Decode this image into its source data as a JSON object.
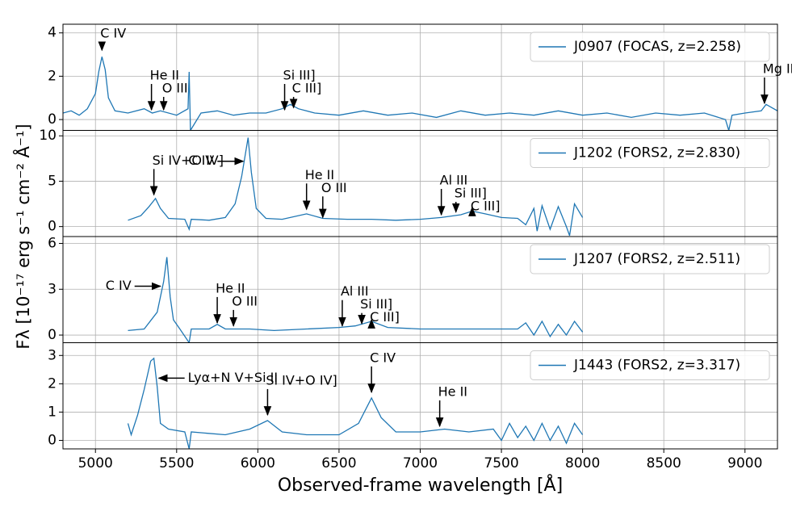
{
  "chart_data": [
    {
      "type": "line",
      "ylabel": "Fλ [10⁻¹⁷ erg s⁻¹ cm⁻² Å⁻¹]",
      "x": [
        4800,
        4850,
        4900,
        4950,
        5000,
        5020,
        5040,
        5060,
        5080,
        5120,
        5200,
        5300,
        5350,
        5400,
        5500,
        5570,
        5577,
        5585,
        5650,
        5750,
        5850,
        5950,
        6050,
        6150,
        6200,
        6250,
        6350,
        6500,
        6650,
        6800,
        6950,
        7100,
        7250,
        7400,
        7550,
        7700,
        7850,
        8000,
        8150,
        8300,
        8450,
        8600,
        8750,
        8880,
        8900,
        8920,
        9000,
        9100,
        9130,
        9200
      ],
      "series": [
        {
          "name": "J0907 (FOCAS, z=2.258)",
          "color": "#1f77b4",
          "values": [
            0.3,
            0.4,
            0.2,
            0.5,
            1.2,
            2.2,
            2.9,
            2.3,
            1.0,
            0.4,
            0.3,
            0.5,
            0.3,
            0.4,
            0.2,
            0.5,
            2.2,
            -0.5,
            0.3,
            0.4,
            0.2,
            0.3,
            0.3,
            0.5,
            0.7,
            0.5,
            0.3,
            0.2,
            0.4,
            0.2,
            0.3,
            0.1,
            0.4,
            0.2,
            0.3,
            0.2,
            0.4,
            0.2,
            0.3,
            0.1,
            0.3,
            0.2,
            0.3,
            0.0,
            -0.5,
            0.2,
            0.3,
            0.4,
            0.7,
            0.4
          ]
        }
      ],
      "ylim": [
        -0.5,
        4.4
      ],
      "yticks": [
        0,
        2,
        4
      ],
      "annotations": [
        {
          "text": "C IV",
          "x": 5040,
          "y": 3.2,
          "arrow": "down"
        },
        {
          "text": "He II",
          "x": 5345,
          "y": 0.45,
          "arrow": "down"
        },
        {
          "text": "O III",
          "x": 5420,
          "y": 0.45,
          "arrow": "down"
        },
        {
          "text": "Si III]",
          "x": 6165,
          "y": 0.45,
          "arrow": "down"
        },
        {
          "text": "C III]",
          "x": 6220,
          "y": 0.55,
          "arrow": "down"
        },
        {
          "text": "Mg II",
          "x": 9120,
          "y": 0.75,
          "arrow": "down"
        }
      ]
    },
    {
      "type": "line",
      "x": [
        5200,
        5280,
        5330,
        5370,
        5400,
        5450,
        5550,
        5577,
        5590,
        5700,
        5800,
        5860,
        5900,
        5940,
        5960,
        5990,
        6050,
        6150,
        6300,
        6400,
        6550,
        6700,
        6850,
        7000,
        7130,
        7250,
        7320,
        7400,
        7500,
        7600,
        7650,
        7700,
        7720,
        7750,
        7800,
        7850,
        7900,
        7920,
        7950,
        8000
      ],
      "series": [
        {
          "name": "J1202 (FORS2, z=2.830)",
          "color": "#1f77b4",
          "values": [
            0.7,
            1.2,
            2.2,
            3.1,
            2.0,
            0.9,
            0.8,
            -0.3,
            0.8,
            0.7,
            1.0,
            2.5,
            5.5,
            9.8,
            6.0,
            2.0,
            0.9,
            0.8,
            1.4,
            0.9,
            0.8,
            0.8,
            0.7,
            0.8,
            1.0,
            1.3,
            1.7,
            1.4,
            1.0,
            0.9,
            0.2,
            2.0,
            -0.5,
            2.3,
            -0.3,
            2.2,
            0.0,
            -1.0,
            2.5,
            1.0
          ]
        }
      ],
      "ylim": [
        -1.1,
        10.6
      ],
      "yticks": [
        0,
        5,
        10
      ],
      "annotations": [
        {
          "text": "Si IV+O IV]",
          "x": 5360,
          "y": 3.5,
          "arrow": "down"
        },
        {
          "text": "C IV",
          "x": 5910,
          "y": 7.2,
          "arrow": "right"
        },
        {
          "text": "He II",
          "x": 6300,
          "y": 1.9,
          "arrow": "down"
        },
        {
          "text": "O III",
          "x": 6400,
          "y": 1.0,
          "arrow": "down"
        },
        {
          "text": "Al III",
          "x": 7130,
          "y": 1.3,
          "arrow": "down"
        },
        {
          "text": "Si III]",
          "x": 7220,
          "y": 1.6,
          "arrow": "down"
        },
        {
          "text": "C III]",
          "x": 7320,
          "y": 2.1,
          "arrow": "down"
        }
      ]
    },
    {
      "type": "line",
      "x": [
        5200,
        5300,
        5380,
        5420,
        5440,
        5460,
        5480,
        5520,
        5577,
        5590,
        5700,
        5750,
        5800,
        5950,
        6100,
        6300,
        6500,
        6600,
        6700,
        6800,
        7000,
        7200,
        7400,
        7600,
        7650,
        7700,
        7750,
        7800,
        7850,
        7900,
        7950,
        8000
      ],
      "series": [
        {
          "name": "J1207 (FORS2, z=2.511)",
          "color": "#1f77b4",
          "values": [
            0.3,
            0.4,
            1.5,
            3.5,
            5.1,
            2.5,
            1.0,
            0.4,
            -0.5,
            0.4,
            0.4,
            0.7,
            0.4,
            0.4,
            0.3,
            0.4,
            0.5,
            0.6,
            0.9,
            0.5,
            0.4,
            0.4,
            0.4,
            0.4,
            0.8,
            0.0,
            0.9,
            -0.1,
            0.7,
            0.0,
            0.9,
            0.2
          ]
        }
      ],
      "ylim": [
        -0.5,
        6.45
      ],
      "yticks": [
        0,
        3,
        6
      ],
      "annotations": [
        {
          "text": "C IV",
          "x": 5400,
          "y": 3.2,
          "arrow": "right"
        },
        {
          "text": "He II",
          "x": 5750,
          "y": 0.8,
          "arrow": "down"
        },
        {
          "text": "O III",
          "x": 5850,
          "y": 0.6,
          "arrow": "down"
        },
        {
          "text": "Al III",
          "x": 6520,
          "y": 0.6,
          "arrow": "down"
        },
        {
          "text": "Si III]",
          "x": 6640,
          "y": 0.75,
          "arrow": "down"
        },
        {
          "text": "C III]",
          "x": 6700,
          "y": 1.0,
          "arrow": "down"
        }
      ]
    },
    {
      "type": "line",
      "xlabel": "Observed-frame wavelength [Å]",
      "x": [
        5200,
        5220,
        5260,
        5300,
        5340,
        5360,
        5380,
        5400,
        5450,
        5550,
        5577,
        5590,
        5800,
        5950,
        6060,
        6150,
        6300,
        6500,
        6620,
        6700,
        6760,
        6850,
        7000,
        7150,
        7300,
        7450,
        7500,
        7550,
        7600,
        7650,
        7700,
        7750,
        7800,
        7850,
        7900,
        7950,
        8000
      ],
      "series": [
        {
          "name": "J1443 (FORS2, z=3.317)",
          "color": "#1f77b4",
          "values": [
            0.6,
            0.2,
            0.9,
            1.8,
            2.8,
            2.9,
            1.9,
            0.6,
            0.4,
            0.3,
            -0.3,
            0.3,
            0.2,
            0.4,
            0.7,
            0.3,
            0.2,
            0.2,
            0.6,
            1.5,
            0.8,
            0.3,
            0.3,
            0.4,
            0.3,
            0.4,
            0.0,
            0.6,
            0.1,
            0.5,
            0.0,
            0.6,
            0.0,
            0.5,
            -0.1,
            0.6,
            0.2
          ]
        }
      ],
      "ylim": [
        -0.3,
        3.45
      ],
      "yticks": [
        0,
        1,
        2,
        3
      ],
      "xlim": [
        4800,
        9200
      ],
      "xticks": [
        5000,
        5500,
        6000,
        6500,
        7000,
        7500,
        8000,
        8500,
        9000
      ],
      "annotations": [
        {
          "text": "Lyα+N V+Si II",
          "x": 5390,
          "y": 2.2,
          "arrow": "left"
        },
        {
          "text": "Si IV+O IV]",
          "x": 6060,
          "y": 0.9,
          "arrow": "down"
        },
        {
          "text": "C IV",
          "x": 6700,
          "y": 1.7,
          "arrow": "down"
        },
        {
          "text": "He II",
          "x": 7120,
          "y": 0.5,
          "arrow": "down"
        }
      ]
    }
  ]
}
